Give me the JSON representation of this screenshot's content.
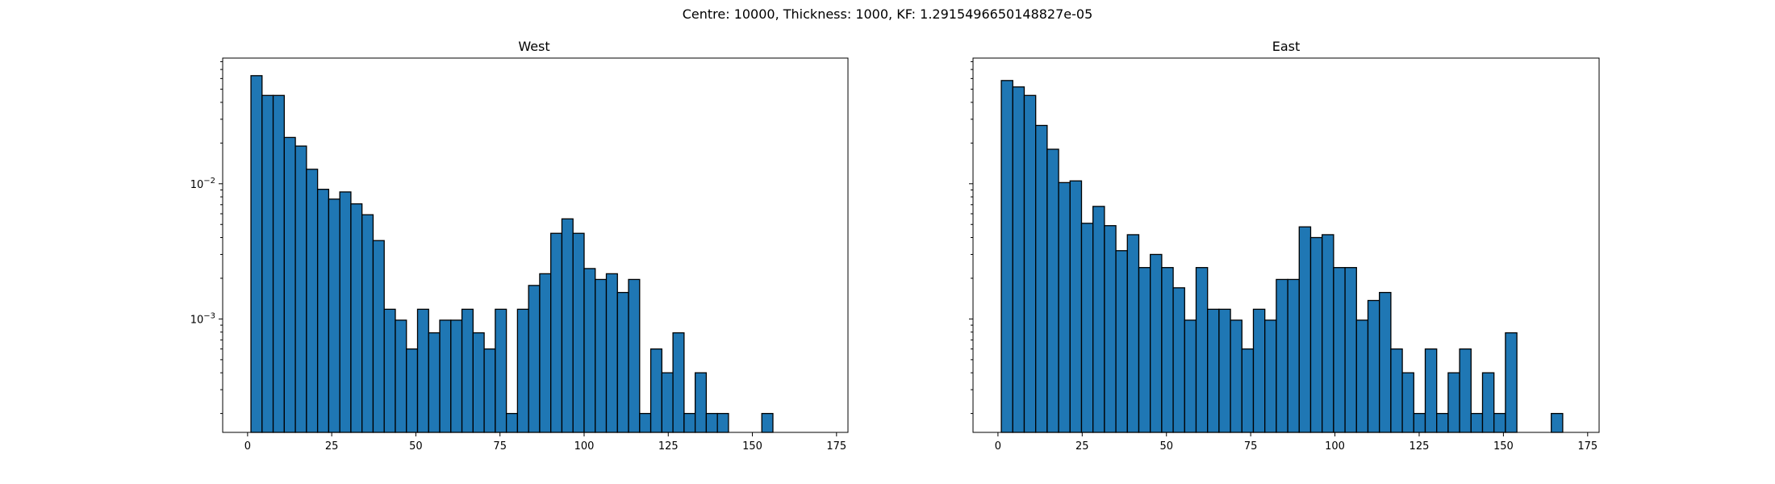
{
  "figure": {
    "suptitle": "Centre: 10000, Thickness: 1000, KF: 1.2915496650148827e-05"
  },
  "chart_data": [
    {
      "type": "bar",
      "subtype": "histogram",
      "title": "West",
      "xlabel": "",
      "ylabel": "",
      "yscale": "log",
      "xlim": [
        -7.4,
        178.4
      ],
      "ylim": [
        0.000145,
        0.085
      ],
      "xticks": [
        0,
        25,
        50,
        75,
        100,
        125,
        150,
        175
      ],
      "yticks": [
        {
          "value": 0.01,
          "base": "10",
          "exp": "−2"
        },
        {
          "value": 0.001,
          "base": "10",
          "exp": "−3"
        }
      ],
      "bar_color": "#1f77b4",
      "bin_width": 3.3,
      "bin_start": 1,
      "values": [
        0.063,
        0.045,
        0.045,
        0.022,
        0.019,
        0.0128,
        0.0091,
        0.0077,
        0.0087,
        0.0071,
        0.0059,
        0.0038,
        0.00118,
        0.00098,
        0.0006,
        0.00118,
        0.00079,
        0.00098,
        0.00098,
        0.00118,
        0.00079,
        0.0006,
        0.00118,
        0.0002,
        0.00118,
        0.00177,
        0.00216,
        0.0043,
        0.0055,
        0.0043,
        0.00236,
        0.00196,
        0.00216,
        0.00157,
        0.00196,
        0.0002,
        0.0006,
        0.0004,
        0.00079,
        0.0002,
        0.0004,
        0.0002,
        0.0002,
        0,
        0,
        0,
        0.0002,
        0,
        0,
        0,
        0
      ]
    },
    {
      "type": "bar",
      "subtype": "histogram",
      "title": "East",
      "xlabel": "",
      "ylabel": "",
      "yscale": "log",
      "xlim": [
        -7.4,
        178.4
      ],
      "ylim": [
        0.000145,
        0.085
      ],
      "xticks": [
        0,
        25,
        50,
        75,
        100,
        125,
        150,
        175
      ],
      "bar_color": "#1f77b4",
      "bin_width": 3.4,
      "bin_start": 1,
      "values": [
        0.058,
        0.052,
        0.045,
        0.027,
        0.018,
        0.0102,
        0.0105,
        0.0051,
        0.0068,
        0.0049,
        0.0032,
        0.0042,
        0.0024,
        0.003,
        0.0024,
        0.0017,
        0.00098,
        0.0024,
        0.00118,
        0.00118,
        0.00098,
        0.0006,
        0.00118,
        0.00098,
        0.00196,
        0.00196,
        0.0048,
        0.004,
        0.0042,
        0.0024,
        0.0024,
        0.00098,
        0.00137,
        0.00157,
        0.0006,
        0.0004,
        0.0002,
        0.0006,
        0.0002,
        0.0004,
        0.0006,
        0.0002,
        0.0004,
        0.0002,
        0.00079,
        0,
        0,
        0,
        0.0002,
        0
      ]
    }
  ]
}
